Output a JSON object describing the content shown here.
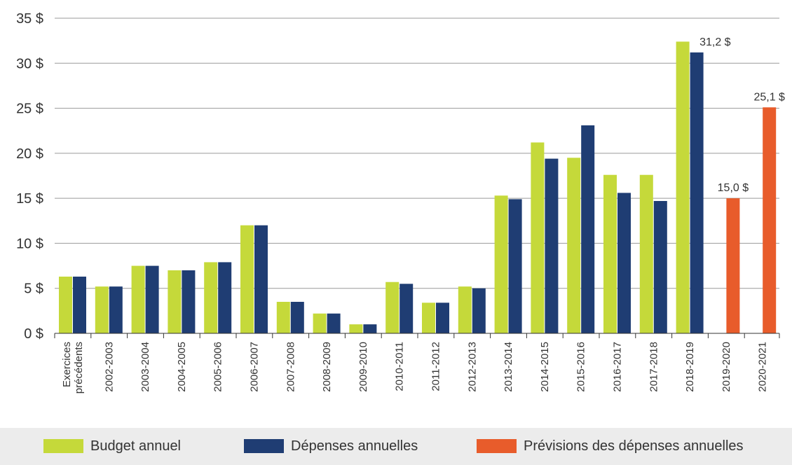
{
  "chart_data": {
    "type": "bar",
    "categories": [
      [
        "Exercices",
        "précédents"
      ],
      "2002-2003",
      "2003-2004",
      "2004-2005",
      "2005-2006",
      "2006-2007",
      "2007-2008",
      "2008-2009",
      "2009-2010",
      "2010-2011",
      "2011-2012",
      "2012-2013",
      "2013-2014",
      "2014-2015",
      "2015-2016",
      "2016-2017",
      "2017-2018",
      "2018-2019",
      "2019-2020",
      "2020-2021"
    ],
    "series": [
      {
        "name": "Budget annuel",
        "color": "#c5d93a",
        "values": [
          6.3,
          5.2,
          7.5,
          7.0,
          7.9,
          12.0,
          3.5,
          2.2,
          1.0,
          5.7,
          3.4,
          5.2,
          15.3,
          21.2,
          19.5,
          17.6,
          17.6,
          32.4,
          null,
          null
        ]
      },
      {
        "name": "Dépenses annuelles",
        "color": "#1f3d73",
        "values": [
          6.3,
          5.2,
          7.5,
          7.0,
          7.9,
          12.0,
          3.5,
          2.2,
          1.0,
          5.5,
          3.4,
          5.0,
          14.9,
          19.4,
          23.1,
          15.6,
          14.7,
          31.2,
          null,
          null
        ]
      },
      {
        "name": "Prévisions des dépenses annuelles",
        "color": "#e85c2b",
        "values": [
          null,
          null,
          null,
          null,
          null,
          null,
          null,
          null,
          null,
          null,
          null,
          null,
          null,
          null,
          null,
          null,
          null,
          null,
          15.0,
          25.1
        ]
      }
    ],
    "data_labels": [
      {
        "category": "2018-2019",
        "series": "Dépenses annuelles",
        "text": "31,2 $"
      },
      {
        "category": "2019-2020",
        "series": "Prévisions des dépenses annuelles",
        "text": "15,0 $"
      },
      {
        "category": "2020-2021",
        "series": "Prévisions des dépenses annuelles",
        "text": "25,1 $"
      }
    ],
    "yticks": [
      0,
      5,
      10,
      15,
      20,
      25,
      30,
      35
    ],
    "ytick_labels": [
      "0 $",
      "5 $",
      "10 $",
      "15 $",
      "20 $",
      "25 $",
      "30 $",
      "35 $"
    ],
    "ylim": [
      0,
      35
    ],
    "grid": true,
    "legend_position": "bottom",
    "title": "",
    "xlabel": "",
    "ylabel": ""
  }
}
